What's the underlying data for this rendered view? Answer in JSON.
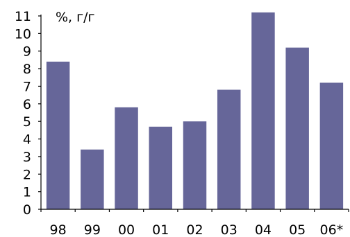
{
  "chart_data": {
    "type": "bar",
    "unit_label": "%, г/г",
    "categories": [
      "98",
      "99",
      "00",
      "01",
      "02",
      "03",
      "04",
      "05",
      "06*"
    ],
    "values": [
      8.4,
      3.4,
      5.8,
      4.7,
      5.0,
      6.8,
      11.2,
      9.2,
      7.2
    ],
    "ylim": [
      0,
      11
    ],
    "yticks": [
      0,
      1,
      2,
      3,
      4,
      5,
      6,
      7,
      8,
      9,
      10,
      11
    ],
    "grid": false,
    "legend": "none",
    "bar_color": "#666699"
  }
}
